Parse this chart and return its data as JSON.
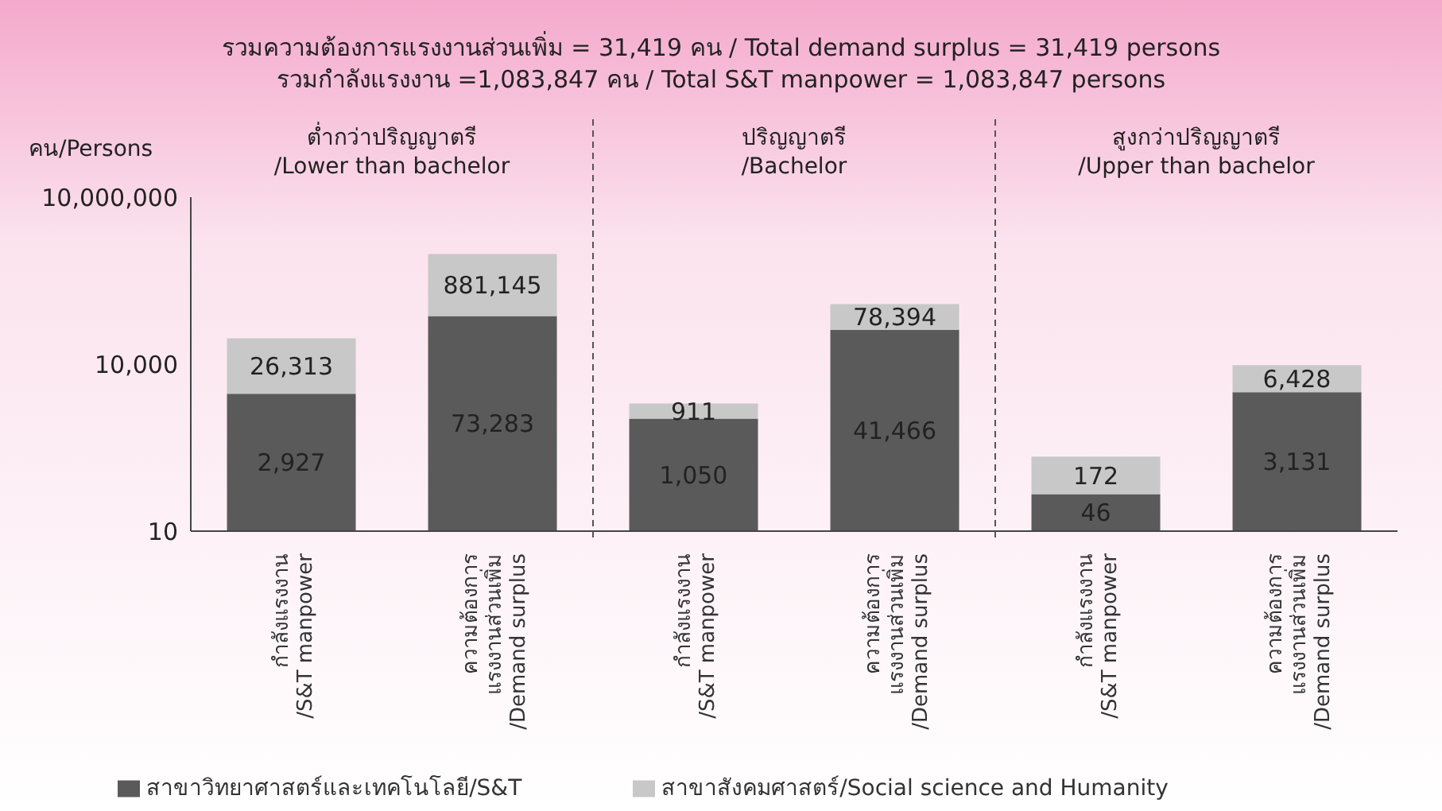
{
  "chart_data": {
    "type": "bar",
    "title": "รวมความต้องการแรงงานส่วนเพิ่ม = 31,419 คน / Total demand surplus = 31,419 persons",
    "subtitle": "รวมกำลังแรงงาน =1,083,847 คน / Total S&T manpower  = 1,083,847 persons",
    "ylabel": "คน/Persons",
    "annotations": [
      "ต่ำกว่าปริญญาตรี\n/Lower than bachelor",
      "ปริญญาตรี\n/Bachelor",
      "สูงกว่าปริญญาตรี\n/Upper than bachelor"
    ],
    "categories": [
      "กำลังแรงงาน\n/S&T manpower",
      "ความต้องการ\nแรงงานส่วนเพิ่ม\n/Demand surplus",
      "กำลังแรงงาน\n/S&T manpower",
      "ความต้องการ\nแรงงานส่วนเพิ่ม\n/Demand surplus",
      "กำลังแรงงาน\n/S&T manpower",
      "ความต้องการ\nแรงงานส่วนเพิ่ม\n/Demand surplus"
    ],
    "series": [
      {
        "name": "สาขาวิทยาศาสตร์และเทคโนโลยี/S&T",
        "color": "#5a5a5a",
        "values": [
          2927,
          73283,
          1050,
          41466,
          46,
          3131
        ],
        "value_labels": [
          "2,927",
          "73,283",
          "1,050",
          "41,466",
          "46",
          "3,131"
        ]
      },
      {
        "name": "สาขาสังคมศาสตร์/Social science and Humanity",
        "color": "#c8c8c8",
        "values": [
          26313,
          881145,
          911,
          78394,
          172,
          6428
        ],
        "value_labels": [
          "26,313",
          "881,145",
          "911",
          "78,394",
          "172",
          "6,428"
        ]
      }
    ],
    "stacked": true,
    "log": "y",
    "ylim": [
      10,
      10000000
    ],
    "yticks": [
      {
        "value": 10,
        "label": "10"
      },
      {
        "value": 10000,
        "label": "10,000"
      },
      {
        "value": 10000000,
        "label": "10,000,000"
      }
    ],
    "legend": "bottom",
    "grid": false
  }
}
